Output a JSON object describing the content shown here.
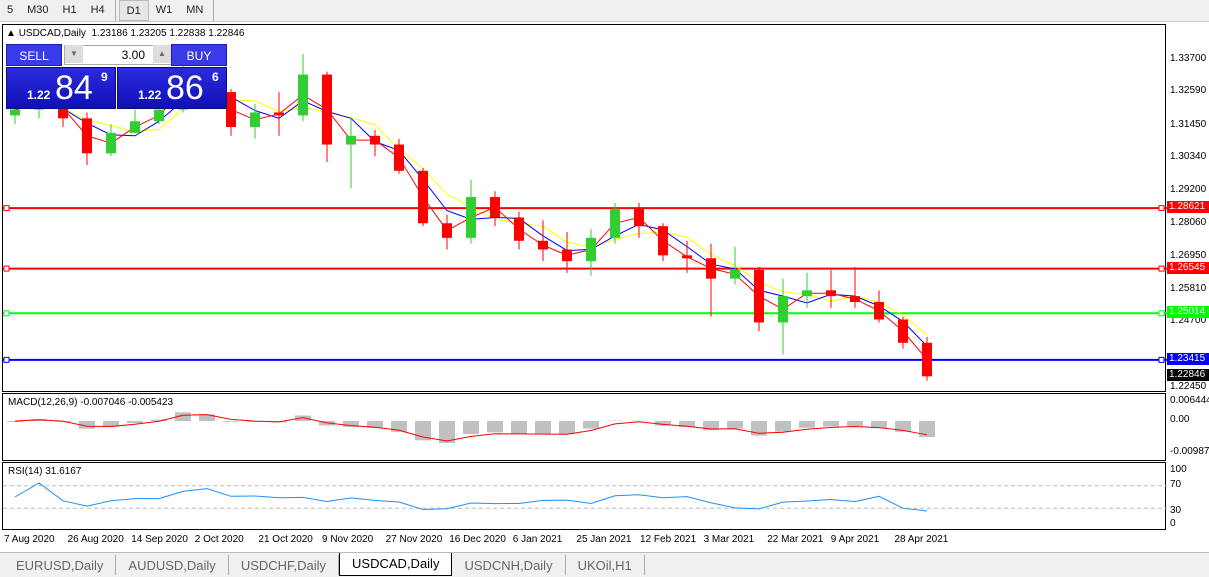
{
  "toolbar": {
    "timeframes": [
      "5",
      "M30",
      "H1",
      "H4",
      "D1",
      "W1",
      "MN"
    ],
    "active": "D1"
  },
  "chart": {
    "title": "USDCAD,Daily",
    "ohlc_readout": "1.23186 1.23205 1.22838 1.22846"
  },
  "trade_panel": {
    "sell_label": "SELL",
    "buy_label": "BUY",
    "lot": "3.00",
    "sell_big": "84",
    "sell_small": "1.22",
    "sell_pip": "9",
    "buy_big": "86",
    "buy_small": "1.22",
    "buy_pip": "6"
  },
  "macd": {
    "label": "MACD(12,26,9) -0.007046 -0.005423",
    "ticks": [
      "0.006444",
      "0.00",
      "-0.009871"
    ]
  },
  "rsi": {
    "label": "RSI(14) 31.6167",
    "ticks": [
      "100",
      "70",
      "30",
      "0"
    ]
  },
  "chart_data": {
    "type": "candlestick",
    "symbol": "USDCAD",
    "ylim": [
      1.2245,
      1.337
    ],
    "price_ticks": [
      "1.33700",
      "1.32590",
      "1.31450",
      "1.30340",
      "1.29200",
      "1.28060",
      "1.26950",
      "1.25810",
      "1.24700",
      "1.22450"
    ],
    "x_labels": [
      "7 Aug 2020",
      "26 Aug 2020",
      "14 Sep 2020",
      "2 Oct 2020",
      "21 Oct 2020",
      "9 Nov 2020",
      "27 Nov 2020",
      "16 Dec 2020",
      "6 Jan 2021",
      "25 Jan 2021",
      "12 Feb 2021",
      "3 Mar 2021",
      "22 Mar 2021",
      "9 Apr 2021",
      "28 Apr 2021"
    ],
    "hlines": [
      {
        "value": "1.28621",
        "color": "#ff0000"
      },
      {
        "value": "1.26545",
        "color": "#ff0000"
      },
      {
        "value": "1.25014",
        "color": "#00ff00"
      },
      {
        "value": "1.23415",
        "color": "#0000ff"
      }
    ],
    "current_price": "1.22846",
    "colors": {
      "bull": "#32cd32",
      "bear": "#ff0000",
      "ma_fast": "#ff0000",
      "ma_mid": "#0000ff",
      "ma_slow": "#ffff00",
      "macd_hist": "#c0c0c0",
      "macd_signal": "#ff0000",
      "rsi": "#1e90ff"
    },
    "candles": [
      [
        1.318,
        1.325,
        1.315,
        1.32
      ],
      [
        1.32,
        1.326,
        1.317,
        1.324
      ],
      [
        1.324,
        1.327,
        1.314,
        1.317
      ],
      [
        1.317,
        1.319,
        1.301,
        1.305
      ],
      [
        1.305,
        1.315,
        1.304,
        1.312
      ],
      [
        1.312,
        1.32,
        1.313,
        1.316
      ],
      [
        1.316,
        1.322,
        1.315,
        1.32
      ],
      [
        1.32,
        1.342,
        1.319,
        1.333
      ],
      [
        1.333,
        1.334,
        1.322,
        1.326
      ],
      [
        1.326,
        1.327,
        1.311,
        1.314
      ],
      [
        1.314,
        1.322,
        1.31,
        1.319
      ],
      [
        1.319,
        1.326,
        1.311,
        1.318
      ],
      [
        1.318,
        1.339,
        1.316,
        1.332
      ],
      [
        1.332,
        1.333,
        1.302,
        1.308
      ],
      [
        1.308,
        1.317,
        1.293,
        1.311
      ],
      [
        1.311,
        1.313,
        1.304,
        1.308
      ],
      [
        1.308,
        1.31,
        1.298,
        1.299
      ],
      [
        1.299,
        1.3,
        1.28,
        1.281
      ],
      [
        1.281,
        1.284,
        1.272,
        1.276
      ],
      [
        1.276,
        1.296,
        1.274,
        1.29
      ],
      [
        1.29,
        1.292,
        1.28,
        1.283
      ],
      [
        1.283,
        1.285,
        1.272,
        1.275
      ],
      [
        1.275,
        1.282,
        1.268,
        1.272
      ],
      [
        1.272,
        1.278,
        1.264,
        1.268
      ],
      [
        1.268,
        1.279,
        1.263,
        1.276
      ],
      [
        1.276,
        1.288,
        1.274,
        1.286
      ],
      [
        1.286,
        1.288,
        1.276,
        1.28
      ],
      [
        1.28,
        1.281,
        1.268,
        1.27
      ],
      [
        1.27,
        1.275,
        1.264,
        1.269
      ],
      [
        1.269,
        1.274,
        1.249,
        1.262
      ],
      [
        1.262,
        1.273,
        1.26,
        1.265
      ],
      [
        1.265,
        1.266,
        1.244,
        1.247
      ],
      [
        1.247,
        1.262,
        1.236,
        1.256
      ],
      [
        1.256,
        1.264,
        1.252,
        1.258
      ],
      [
        1.258,
        1.265,
        1.252,
        1.256
      ],
      [
        1.256,
        1.266,
        1.252,
        1.254
      ],
      [
        1.254,
        1.258,
        1.247,
        1.248
      ],
      [
        1.248,
        1.249,
        1.238,
        1.24
      ],
      [
        1.24,
        1.242,
        1.227,
        1.2285
      ]
    ]
  },
  "tabs": [
    "EURUSD,Daily",
    "AUDUSD,Daily",
    "USDCHF,Daily",
    "USDCAD,Daily",
    "USDCNH,Daily",
    "UKOil,H1"
  ],
  "active_tab": "USDCAD,Daily"
}
